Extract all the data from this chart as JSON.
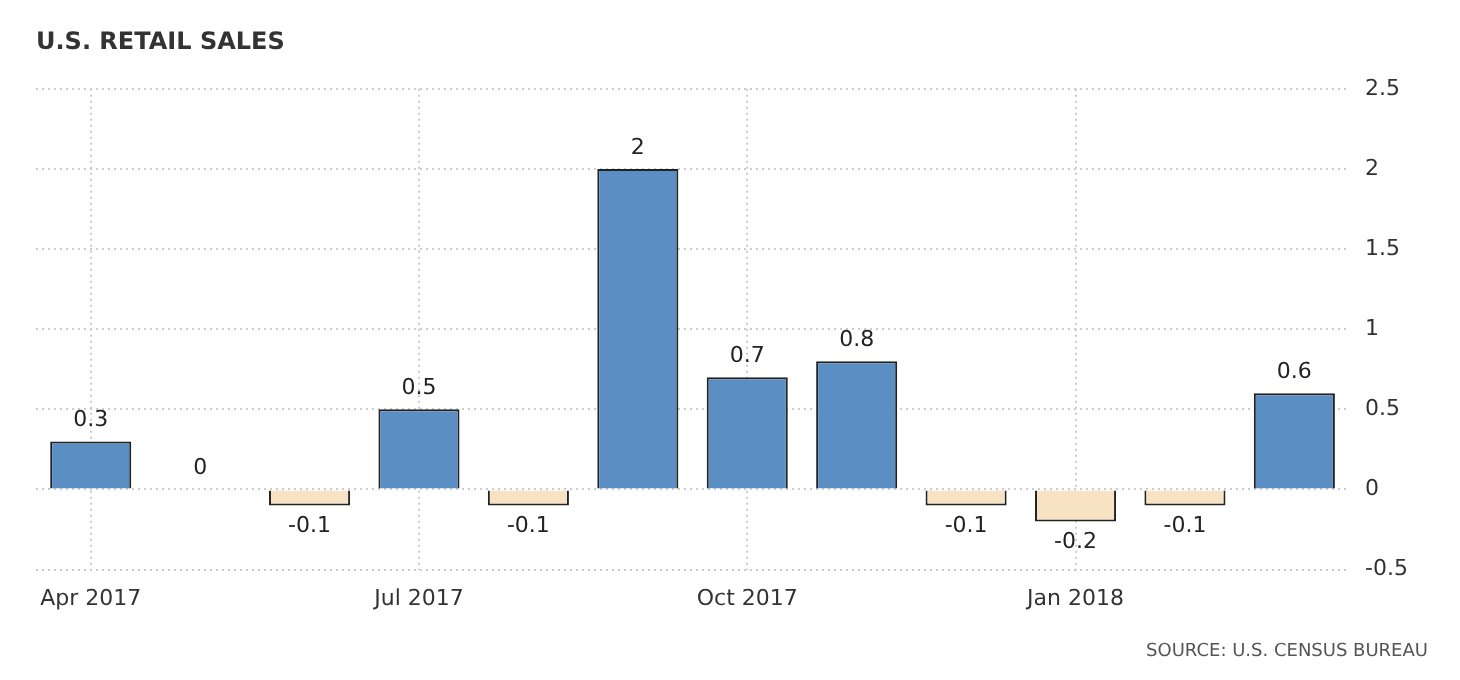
{
  "chart_data": {
    "type": "bar",
    "title": "U.S. RETAIL SALES",
    "categories": [
      "Apr 2017",
      null,
      null,
      "Jul 2017",
      null,
      null,
      "Oct 2017",
      null,
      null,
      "Jan 2018",
      null,
      null
    ],
    "values": [
      0.3,
      0,
      -0.1,
      0.5,
      -0.1,
      2,
      0.7,
      0.8,
      -0.1,
      -0.2,
      -0.1,
      0.6
    ],
    "colors": [
      "#5b8fc4",
      "#5b8fc4",
      "#f7e3c4",
      "#5b8fc4",
      "#f7e3c4",
      "#5b8fc4",
      "#5b8fc4",
      "#5b8fc4",
      "#f7e3c4",
      "#f7e3c4",
      "#f7e3c4",
      "#5b8fc4"
    ],
    "ylim": [
      -0.5,
      2.5
    ],
    "yticks": [
      -0.5,
      0,
      0.5,
      1,
      1.5,
      2,
      2.5
    ],
    "grid": true,
    "data_labels": true,
    "annotations": [
      "SOURCE: U.S. CENSUS BUREAU"
    ]
  }
}
